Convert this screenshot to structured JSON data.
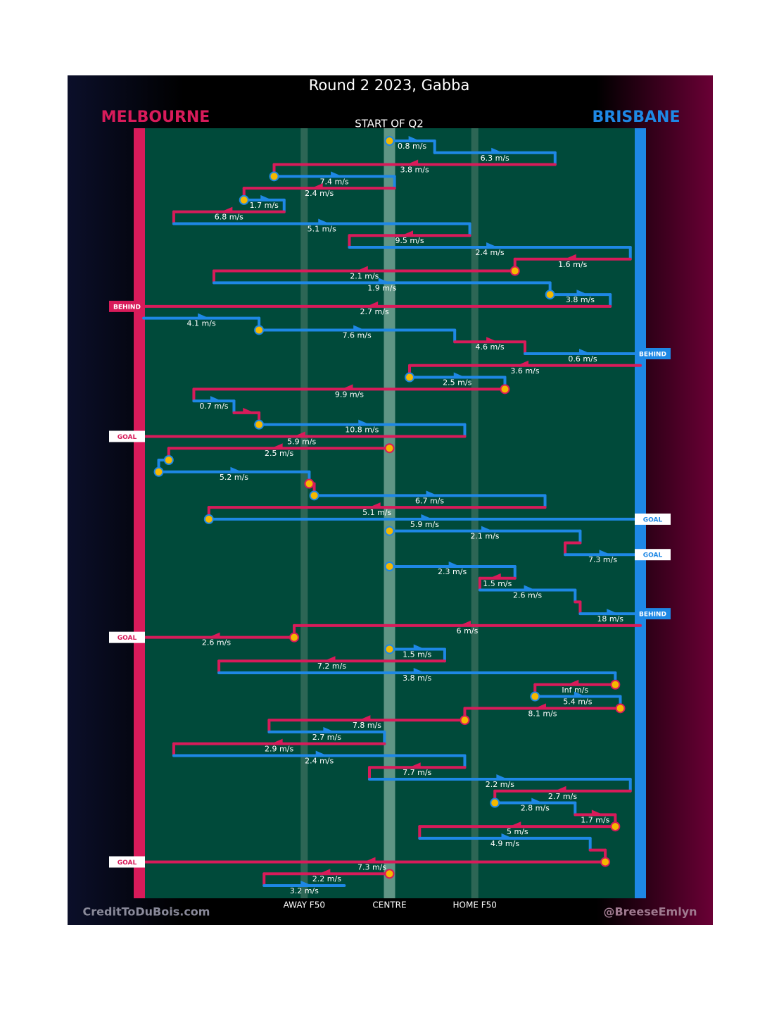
{
  "chart_data": {
    "type": "possession-flow",
    "title": "Round 2 2023, Gabba",
    "subtitle": "START OF Q2",
    "credit_left": "CreditToDuBois.com",
    "credit_right": "@BreeseEmlyn",
    "teams": [
      {
        "name": "MELBOURNE",
        "color": "#d81b5a"
      },
      {
        "name": "BRISBANE",
        "color": "#1e88e5"
      }
    ],
    "xlim": [
      0,
      100
    ],
    "xticks": [
      {
        "value": 33,
        "label": "AWAY F50"
      },
      {
        "value": 50,
        "label": "CENTRE"
      },
      {
        "value": 67,
        "label": "HOME F50"
      }
    ],
    "segments": [
      {
        "team": "BRISBANE",
        "from": 50,
        "to": 59,
        "speed": "0.8 m/s",
        "contest": true
      },
      {
        "team": "BRISBANE",
        "from": 59,
        "to": 83,
        "speed": "6.3 m/s"
      },
      {
        "team": "MELBOURNE",
        "from": 83,
        "to": 27,
        "speed": "3.8 m/s"
      },
      {
        "team": "BRISBANE",
        "from": 27,
        "to": 51,
        "speed": "7.4 m/s",
        "contest": true
      },
      {
        "team": "MELBOURNE",
        "from": 51,
        "to": 21,
        "speed": "2.4 m/s"
      },
      {
        "team": "BRISBANE",
        "from": 21,
        "to": 29,
        "speed": "1.7 m/s",
        "contest": true
      },
      {
        "team": "MELBOURNE",
        "from": 29,
        "to": 7,
        "speed": "6.8 m/s"
      },
      {
        "team": "BRISBANE",
        "from": 7,
        "to": 66,
        "speed": "5.1 m/s"
      },
      {
        "team": "MELBOURNE",
        "from": 66,
        "to": 42,
        "speed": "9.5 m/s"
      },
      {
        "team": "BRISBANE",
        "from": 42,
        "to": 98,
        "speed": "2.4 m/s"
      },
      {
        "team": "MELBOURNE",
        "from": 98,
        "to": 75,
        "speed": "1.6 m/s"
      },
      {
        "team": "MELBOURNE",
        "from": 75,
        "to": 15,
        "speed": "2.1 m/s",
        "contest": true
      },
      {
        "team": "BRISBANE",
        "from": 15,
        "to": 82,
        "speed": "1.9 m/s"
      },
      {
        "team": "BRISBANE",
        "from": 82,
        "to": 94,
        "speed": "3.8 m/s",
        "contest": true
      },
      {
        "team": "MELBOURNE",
        "from": 94,
        "to": 0,
        "speed": "2.7 m/s",
        "result": "BEHIND"
      },
      {
        "team": "BRISBANE",
        "from": 1,
        "to": 24,
        "speed": "4.1 m/s"
      },
      {
        "team": "BRISBANE",
        "from": 24,
        "to": 63,
        "speed": "7.6 m/s",
        "contest": true
      },
      {
        "team": "MELBOURNE",
        "from": 63,
        "to": 77,
        "speed": "4.6 m/s"
      },
      {
        "team": "BRISBANE",
        "from": 77,
        "to": 100,
        "speed": "0.6 m/s",
        "result": "BEHIND"
      },
      {
        "team": "MELBOURNE",
        "from": 100,
        "to": 54,
        "speed": "3.6 m/s"
      },
      {
        "team": "BRISBANE",
        "from": 54,
        "to": 73,
        "speed": "2.5 m/s",
        "contest": true
      },
      {
        "team": "MELBOURNE",
        "from": 73,
        "to": 11,
        "speed": "9.9 m/s",
        "contest": true
      },
      {
        "team": "BRISBANE",
        "from": 11,
        "to": 19,
        "speed": "0.7 m/s"
      },
      {
        "team": "MELBOURNE",
        "from": 19,
        "to": 24
      },
      {
        "team": "BRISBANE",
        "from": 24,
        "to": 65,
        "speed": "10.8 m/s",
        "contest": true
      },
      {
        "team": "MELBOURNE",
        "from": 65,
        "to": 0,
        "speed": "5.9 m/s",
        "result": "GOAL"
      },
      {
        "team": "MELBOURNE",
        "from": 50,
        "to": 6,
        "speed": "2.5 m/s",
        "contest": true
      },
      {
        "team": "BRISBANE",
        "from": 6,
        "to": 4,
        "contest": true
      },
      {
        "team": "BRISBANE",
        "from": 4,
        "to": 34,
        "speed": "5.2 m/s",
        "contest": true
      },
      {
        "team": "MELBOURNE",
        "from": 34,
        "to": 35,
        "contest": true
      },
      {
        "team": "BRISBANE",
        "from": 35,
        "to": 81,
        "speed": "6.7 m/s",
        "contest": true
      },
      {
        "team": "MELBOURNE",
        "from": 81,
        "to": 14,
        "speed": "5.1 m/s"
      },
      {
        "team": "BRISBANE",
        "from": 14,
        "to": 100,
        "speed": "5.9 m/s",
        "contest": true,
        "result": "GOAL"
      },
      {
        "team": "BRISBANE",
        "from": 50,
        "to": 88,
        "speed": "2.1 m/s",
        "contest": true
      },
      {
        "team": "MELBOURNE",
        "from": 88,
        "to": 85
      },
      {
        "team": "BRISBANE",
        "from": 85,
        "to": 100,
        "speed": "7.3 m/s",
        "result": "GOAL"
      },
      {
        "team": "BRISBANE",
        "from": 50,
        "to": 75,
        "speed": "2.3 m/s",
        "contest": true
      },
      {
        "team": "MELBOURNE",
        "from": 75,
        "to": 68,
        "speed": "1.5 m/s"
      },
      {
        "team": "BRISBANE",
        "from": 68,
        "to": 87,
        "speed": "2.6 m/s"
      },
      {
        "team": "MELBOURNE",
        "from": 87,
        "to": 88
      },
      {
        "team": "BRISBANE",
        "from": 88,
        "to": 100,
        "speed": "18 m/s",
        "result": "BEHIND"
      },
      {
        "team": "MELBOURNE",
        "from": 100,
        "to": 31,
        "speed": "6 m/s"
      },
      {
        "team": "MELBOURNE",
        "from": 31,
        "to": 0,
        "speed": "2.6 m/s",
        "contest": true,
        "result": "GOAL"
      },
      {
        "team": "BRISBANE",
        "from": 50,
        "to": 61,
        "speed": "1.5 m/s",
        "contest": true
      },
      {
        "team": "MELBOURNE",
        "from": 61,
        "to": 16,
        "speed": "7.2 m/s"
      },
      {
        "team": "BRISBANE",
        "from": 16,
        "to": 95,
        "speed": "3.8 m/s"
      },
      {
        "team": "MELBOURNE",
        "from": 95,
        "to": 79,
        "speed": "Inf m/s",
        "contest": true
      },
      {
        "team": "BRISBANE",
        "from": 79,
        "to": 96,
        "speed": "5.4 m/s",
        "contest": true
      },
      {
        "team": "MELBOURNE",
        "from": 96,
        "to": 65,
        "speed": "8.1 m/s",
        "contest": true
      },
      {
        "team": "MELBOURNE",
        "from": 65,
        "to": 26,
        "speed": "7.8 m/s",
        "contest": true
      },
      {
        "team": "BRISBANE",
        "from": 26,
        "to": 49,
        "speed": "2.7 m/s"
      },
      {
        "team": "MELBOURNE",
        "from": 49,
        "to": 7,
        "speed": "2.9 m/s"
      },
      {
        "team": "BRISBANE",
        "from": 7,
        "to": 65,
        "speed": "2.4 m/s"
      },
      {
        "team": "MELBOURNE",
        "from": 65,
        "to": 46,
        "speed": "7.7 m/s"
      },
      {
        "team": "BRISBANE",
        "from": 46,
        "to": 98,
        "speed": "2.2 m/s"
      },
      {
        "team": "MELBOURNE",
        "from": 98,
        "to": 71,
        "speed": "2.7 m/s"
      },
      {
        "team": "BRISBANE",
        "from": 71,
        "to": 87,
        "speed": "2.8 m/s",
        "contest": true
      },
      {
        "team": "MELBOURNE",
        "from": 87,
        "to": 95,
        "speed": "1.7 m/s"
      },
      {
        "team": "MELBOURNE",
        "from": 95,
        "to": 56,
        "speed": "5 m/s",
        "contest": true
      },
      {
        "team": "BRISBANE",
        "from": 56,
        "to": 90,
        "speed": "4.9 m/s"
      },
      {
        "team": "MELBOURNE",
        "from": 90,
        "to": 93
      },
      {
        "team": "MELBOURNE",
        "from": 93,
        "to": 0,
        "speed": "7.3 m/s",
        "contest": true,
        "result": "GOAL"
      },
      {
        "team": "MELBOURNE",
        "from": 50,
        "to": 25,
        "speed": "2.2 m/s",
        "contest": true
      },
      {
        "team": "BRISBANE",
        "from": 25,
        "to": 41,
        "speed": "3.2 m/s"
      }
    ]
  }
}
